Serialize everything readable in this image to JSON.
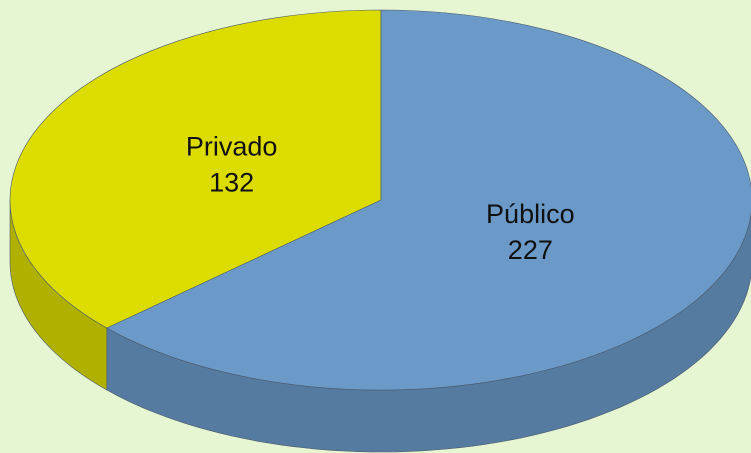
{
  "chart_data": {
    "type": "pie3d",
    "categories": [
      "Privado",
      "Público"
    ],
    "values": [
      132,
      227
    ],
    "colors": [
      "#dcdc00",
      "#6b9ac8"
    ]
  }
}
